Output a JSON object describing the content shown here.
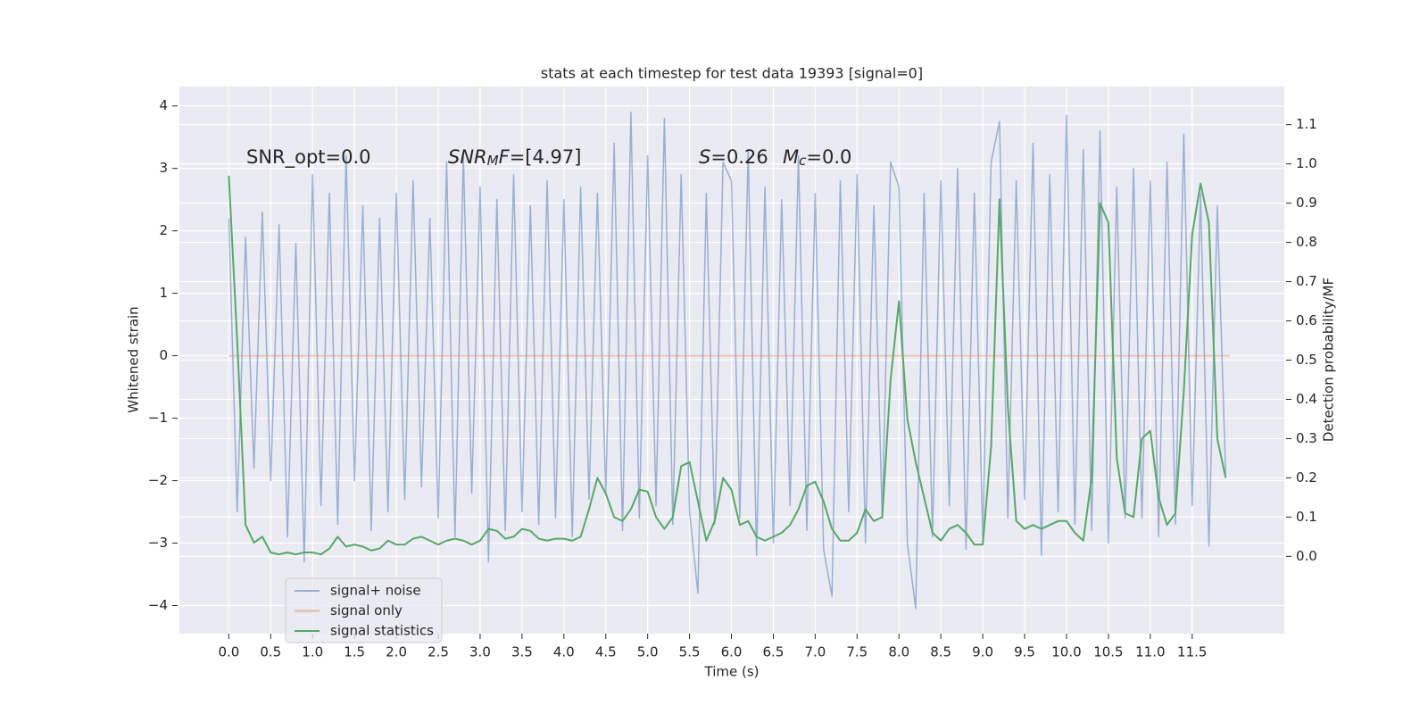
{
  "chart_data": {
    "type": "line",
    "title": "stats at each timestep for test data 19393 [signal=0]",
    "xlabel": "Time (s)",
    "ylabel": "Whitened strain",
    "y2label": "Detection probability/MF",
    "annotations": [
      [
        {
          "text": "SNR_opt=0.0"
        }
      ],
      [
        {
          "text": "SNR",
          "italic": true
        },
        {
          "text": "M",
          "italic": true,
          "sub": true
        },
        {
          "text": "F",
          "italic": true
        },
        {
          "text": "=[4.97]"
        }
      ],
      [
        {
          "text": "S",
          "italic": true
        },
        {
          "text": "=0.26"
        }
      ],
      [
        {
          "text": "M",
          "italic": true
        },
        {
          "text": "c",
          "italic": true,
          "sub": true
        },
        {
          "text": "=0.0"
        }
      ]
    ],
    "xlim": [
      -0.59,
      12.6
    ],
    "ylim": [
      -4.45,
      4.31
    ],
    "y2lim": [
      -0.197,
      1.197
    ],
    "xticks": [
      {
        "value": 0,
        "label": "0.0"
      },
      {
        "value": 0.5,
        "label": "0.5"
      },
      {
        "value": 1,
        "label": "1.0"
      },
      {
        "value": 1.5,
        "label": "1.5"
      },
      {
        "value": 2,
        "label": "2.0"
      },
      {
        "value": 2.5,
        "label": "2.5"
      },
      {
        "value": 3,
        "label": "3.0"
      },
      {
        "value": 3.5,
        "label": "3.5"
      },
      {
        "value": 4,
        "label": "4.0"
      },
      {
        "value": 4.5,
        "label": "4.5"
      },
      {
        "value": 5,
        "label": "5.0"
      },
      {
        "value": 5.5,
        "label": "5.5"
      },
      {
        "value": 6,
        "label": "6.0"
      },
      {
        "value": 6.5,
        "label": "6.5"
      },
      {
        "value": 7,
        "label": "7.0"
      },
      {
        "value": 7.5,
        "label": "7.5"
      },
      {
        "value": 8,
        "label": "8.0"
      },
      {
        "value": 8.5,
        "label": "8.5"
      },
      {
        "value": 9,
        "label": "9.0"
      },
      {
        "value": 9.5,
        "label": "9.5"
      },
      {
        "value": 10,
        "label": "10.0"
      },
      {
        "value": 10.5,
        "label": "10.5"
      },
      {
        "value": 11,
        "label": "11.0"
      },
      {
        "value": 11.5,
        "label": "11.5"
      }
    ],
    "yticks": [
      {
        "value": -4,
        "label": "−4"
      },
      {
        "value": -3,
        "label": "−3"
      },
      {
        "value": -2,
        "label": "−2"
      },
      {
        "value": -1,
        "label": "−1"
      },
      0,
      1,
      2,
      3,
      4
    ],
    "y2ticks": [
      {
        "value": 0,
        "label": "0.0"
      },
      {
        "value": 0.1,
        "label": "0.1"
      },
      {
        "value": 0.2,
        "label": "0.2"
      },
      {
        "value": 0.3,
        "label": "0.3"
      },
      {
        "value": 0.4,
        "label": "0.4"
      },
      {
        "value": 0.5,
        "label": "0.5"
      },
      {
        "value": 0.6,
        "label": "0.6"
      },
      {
        "value": 0.7,
        "label": "0.7"
      },
      {
        "value": 0.8,
        "label": "0.8"
      },
      {
        "value": 0.9,
        "label": "0.9"
      },
      {
        "value": 1,
        "label": "1.0"
      },
      {
        "value": 1.1,
        "label": "1.1"
      }
    ],
    "grid": true,
    "legend": "lower left",
    "x": [
      0,
      0.1,
      0.2,
      0.3,
      0.4,
      0.5,
      0.6,
      0.7,
      0.8,
      0.9,
      1,
      1.1,
      1.2,
      1.3,
      1.4,
      1.5,
      1.6,
      1.7,
      1.8,
      1.9,
      2,
      2.1,
      2.2,
      2.3,
      2.4,
      2.5,
      2.6,
      2.7,
      2.8,
      2.9,
      3,
      3.1,
      3.2,
      3.3,
      3.4,
      3.5,
      3.6,
      3.7,
      3.8,
      3.9,
      4,
      4.1,
      4.2,
      4.3,
      4.4,
      4.5,
      4.6,
      4.7,
      4.8,
      4.9,
      5,
      5.1,
      5.2,
      5.3,
      5.4,
      5.5,
      5.6,
      5.7,
      5.8,
      5.9,
      6,
      6.1,
      6.2,
      6.3,
      6.4,
      6.5,
      6.6,
      6.7,
      6.8,
      6.9,
      7,
      7.1,
      7.2,
      7.3,
      7.4,
      7.5,
      7.6,
      7.7,
      7.8,
      7.9,
      8,
      8.1,
      8.2,
      8.3,
      8.4,
      8.5,
      8.6,
      8.7,
      8.8,
      8.9,
      9,
      9.1,
      9.2,
      9.3,
      9.4,
      9.5,
      9.6,
      9.7,
      9.8,
      9.9,
      10,
      10.1,
      10.2,
      10.3,
      10.4,
      10.5,
      10.6,
      10.7,
      10.8,
      10.9,
      11,
      11.1,
      11.2,
      11.3,
      11.4,
      11.5,
      11.6,
      11.7,
      11.8,
      11.9
    ],
    "series": [
      {
        "name": "signal+ noise",
        "color": "#4c72b0",
        "alpha": 0.5,
        "values": [
          2.2,
          -2.5,
          1.9,
          -1.8,
          2.3,
          -2.0,
          2.1,
          -2.9,
          1.8,
          -3.3,
          2.9,
          -2.4,
          2.6,
          -2.7,
          3.2,
          -2.0,
          2.4,
          -2.8,
          2.2,
          -2.5,
          2.6,
          -2.3,
          2.8,
          -2.1,
          2.2,
          -2.6,
          3.1,
          -2.9,
          3.2,
          -2.2,
          2.7,
          -3.3,
          2.5,
          -2.8,
          2.9,
          -2.5,
          2.4,
          -2.7,
          2.8,
          -2.6,
          2.5,
          -2.9,
          2.7,
          -2.3,
          2.6,
          -2.2,
          3.4,
          -2.8,
          3.9,
          -2.6,
          3.2,
          -2.4,
          3.8,
          -2.7,
          2.9,
          -2.5,
          -3.8,
          2.6,
          -2.7,
          3.1,
          2.8,
          -2.6,
          3.3,
          -3.2,
          2.7,
          -3.0,
          2.5,
          -2.4,
          3.2,
          -2.8,
          2.6,
          -3.1,
          -3.85,
          2.8,
          -2.5,
          2.9,
          -3.0,
          2.4,
          -2.6,
          3.1,
          2.7,
          -3.0,
          -4.05,
          2.6,
          -2.9,
          2.8,
          -2.4,
          3.0,
          -3.1,
          2.6,
          -2.9,
          3.1,
          3.75,
          -2.6,
          2.8,
          -2.3,
          3.4,
          -3.2,
          2.9,
          -2.5,
          3.85,
          -2.7,
          3.3,
          -2.8,
          3.6,
          -3.0,
          2.7,
          -2.6,
          3.0,
          -2.6,
          2.8,
          -2.9,
          3.1,
          -2.7,
          3.55,
          -2.4,
          2.6,
          -3.05,
          2.4,
          -1.9
        ]
      },
      {
        "name": "signal only",
        "color": "#dd8452",
        "alpha": 0.5,
        "x": [
          0,
          11.95
        ],
        "values": [
          0,
          0
        ]
      },
      {
        "name": "signal statistics",
        "color": "#55a868",
        "axis": "y2",
        "values": [
          0.97,
          0.55,
          0.08,
          0.035,
          0.05,
          0.01,
          0.005,
          0.01,
          0.005,
          0.01,
          0.01,
          0.005,
          0.02,
          0.05,
          0.025,
          0.03,
          0.025,
          0.015,
          0.02,
          0.04,
          0.03,
          0.03,
          0.045,
          0.05,
          0.04,
          0.03,
          0.04,
          0.045,
          0.04,
          0.03,
          0.04,
          0.07,
          0.065,
          0.045,
          0.05,
          0.07,
          0.065,
          0.045,
          0.04,
          0.045,
          0.045,
          0.04,
          0.05,
          0.12,
          0.2,
          0.16,
          0.1,
          0.09,
          0.12,
          0.17,
          0.165,
          0.1,
          0.07,
          0.1,
          0.23,
          0.24,
          0.14,
          0.04,
          0.09,
          0.2,
          0.17,
          0.08,
          0.09,
          0.05,
          0.04,
          0.05,
          0.06,
          0.08,
          0.12,
          0.18,
          0.19,
          0.14,
          0.07,
          0.04,
          0.04,
          0.06,
          0.12,
          0.09,
          0.1,
          0.45,
          0.65,
          0.35,
          0.24,
          0.15,
          0.06,
          0.04,
          0.07,
          0.08,
          0.06,
          0.03,
          0.03,
          0.28,
          0.91,
          0.38,
          0.09,
          0.07,
          0.08,
          0.07,
          0.08,
          0.09,
          0.09,
          0.06,
          0.04,
          0.2,
          0.9,
          0.85,
          0.25,
          0.11,
          0.1,
          0.3,
          0.32,
          0.15,
          0.08,
          0.11,
          0.42,
          0.82,
          0.95,
          0.85,
          0.3,
          0.2
        ]
      }
    ]
  }
}
